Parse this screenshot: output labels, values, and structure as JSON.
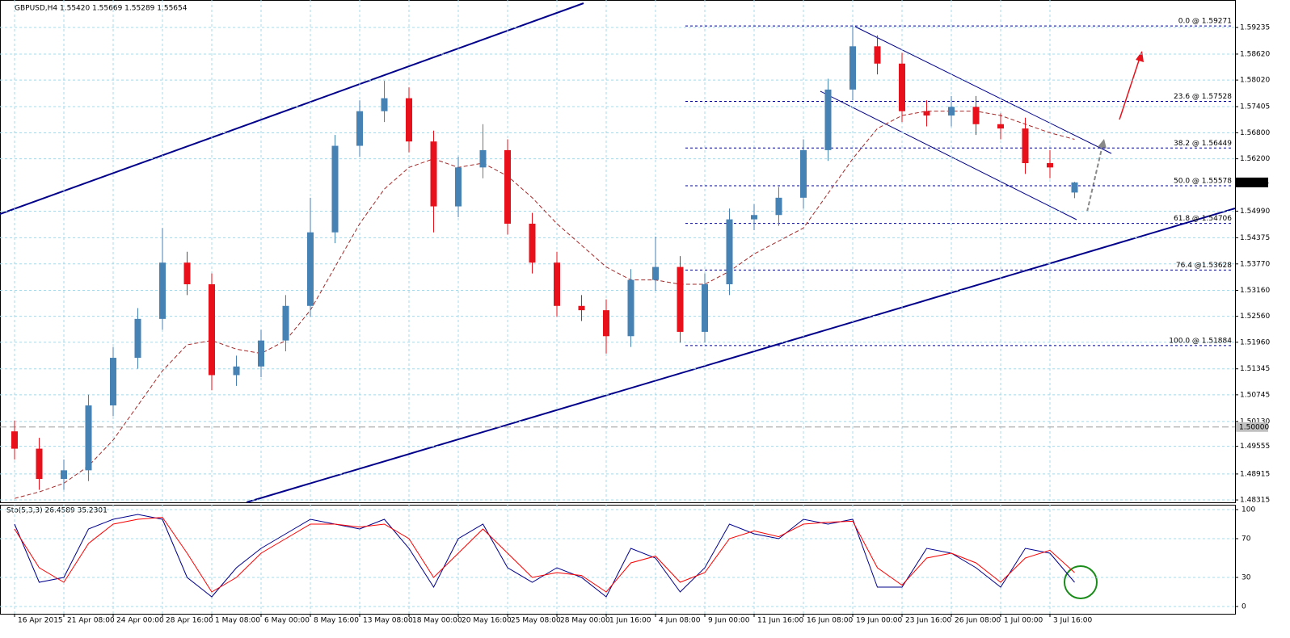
{
  "chart_data": {
    "type": "candlestick",
    "title": "GBPUSD,H4  1.55420 1.55669 1.55289 1.55654",
    "categories": [
      "16 Apr 2015",
      null,
      "21 Apr 08:00",
      null,
      "24 Apr 00:00",
      null,
      "28 Apr 16:00",
      null,
      "1 May 08:00",
      null,
      "6 May 00:00",
      null,
      "8 May 16:00",
      null,
      "13 May 08:00",
      null,
      "18 May 00:00",
      null,
      "20 May 16:00",
      null,
      "25 May 08:00",
      null,
      "28 May 00:00",
      null,
      "1 Jun 16:00",
      null,
      "4 Jun 08:00",
      null,
      "9 Jun 00:00",
      null,
      "11 Jun 16:00",
      null,
      "16 Jun 08:00",
      null,
      "19 Jun 00:00",
      null,
      "23 Jun 16:00",
      null,
      "26 Jun 08:00",
      null,
      "1 Jul 00:00",
      null,
      "3 Jul 16:00",
      null
    ],
    "open": [
      1.499,
      1.495,
      1.488,
      1.49,
      1.505,
      1.516,
      1.525,
      1.538,
      1.533,
      1.512,
      1.514,
      1.52,
      1.528,
      1.545,
      1.565,
      1.573,
      1.576,
      1.566,
      1.551,
      1.56,
      1.564,
      1.547,
      1.538,
      1.528,
      1.527,
      1.521,
      1.534,
      1.537,
      1.522,
      1.533,
      1.548,
      1.549,
      1.553,
      1.564,
      1.578,
      1.588,
      1.584,
      1.573,
      1.572,
      1.574,
      1.57,
      1.569,
      1.561,
      1.5542
    ],
    "high": [
      1.5015,
      1.4975,
      1.4925,
      1.5075,
      1.5185,
      1.5275,
      1.546,
      1.5405,
      1.5355,
      1.5165,
      1.5225,
      1.5305,
      1.553,
      1.5675,
      1.5755,
      1.58,
      1.5785,
      1.5685,
      1.5625,
      1.57,
      1.5665,
      1.5495,
      1.5405,
      1.5305,
      1.5295,
      1.5365,
      1.544,
      1.5395,
      1.5355,
      1.5505,
      1.5515,
      1.5555,
      1.5665,
      1.5805,
      1.5927,
      1.5905,
      1.5865,
      1.5755,
      1.5765,
      1.5765,
      1.5725,
      1.5715,
      1.564,
      1.55669
    ],
    "low": [
      1.4925,
      1.4855,
      1.4855,
      1.4875,
      1.5025,
      1.5135,
      1.5225,
      1.5305,
      1.5085,
      1.5095,
      1.5115,
      1.5175,
      1.5255,
      1.5425,
      1.5625,
      1.5705,
      1.5635,
      1.545,
      1.5485,
      1.5575,
      1.5445,
      1.5355,
      1.5255,
      1.5245,
      1.517,
      1.5185,
      1.5315,
      1.5195,
      1.5195,
      1.5305,
      1.5455,
      1.5465,
      1.5505,
      1.5615,
      1.5755,
      1.5815,
      1.5705,
      1.5695,
      1.5695,
      1.5675,
      1.5665,
      1.5585,
      1.5575,
      1.55289
    ],
    "close": [
      1.495,
      1.488,
      1.49,
      1.505,
      1.516,
      1.525,
      1.538,
      1.533,
      1.512,
      1.514,
      1.52,
      1.528,
      1.545,
      1.565,
      1.573,
      1.576,
      1.566,
      1.551,
      1.56,
      1.564,
      1.547,
      1.538,
      1.528,
      1.527,
      1.521,
      1.534,
      1.537,
      1.522,
      1.533,
      1.548,
      1.549,
      1.553,
      1.564,
      1.578,
      1.588,
      1.584,
      1.573,
      1.572,
      1.574,
      1.57,
      1.569,
      1.561,
      1.56,
      1.55654
    ],
    "up_color": "#4682b4",
    "down_color": "#e8101a",
    "moving_average": {
      "color": "#a52a2a",
      "values": [
        1.4835,
        1.485,
        1.487,
        1.491,
        1.497,
        1.505,
        1.513,
        1.519,
        1.52,
        1.518,
        1.517,
        1.52,
        1.527,
        1.537,
        1.547,
        1.555,
        1.56,
        1.562,
        1.56,
        1.561,
        1.558,
        1.553,
        1.547,
        1.542,
        1.537,
        1.534,
        1.534,
        1.533,
        1.533,
        1.536,
        1.54,
        1.543,
        1.546,
        1.554,
        1.562,
        1.569,
        1.572,
        1.573,
        1.573,
        1.573,
        1.572,
        1.57,
        1.568,
        1.5665
      ]
    },
    "ylim": [
      1.4826,
      1.5987
    ],
    "yticks": [
      {
        "value": 1.48315,
        "label": "1.48315"
      },
      {
        "value": 1.48915,
        "label": "1.48915"
      },
      {
        "value": 1.49555,
        "label": "1.49555"
      },
      {
        "value": 1.5013,
        "label": "1.50130"
      },
      {
        "value": 1.50745,
        "label": "1.50745"
      },
      {
        "value": 1.51345,
        "label": "1.51345"
      },
      {
        "value": 1.5196,
        "label": "1.51960"
      },
      {
        "value": 1.5256,
        "label": "1.52560"
      },
      {
        "value": 1.5316,
        "label": "1.53160"
      },
      {
        "value": 1.5377,
        "label": "1.53770"
      },
      {
        "value": 1.54375,
        "label": "1.54375"
      },
      {
        "value": 1.5499,
        "label": "1.54990"
      },
      {
        "value": 1.562,
        "label": "1.56200"
      },
      {
        "value": 1.568,
        "label": "1.56800"
      },
      {
        "value": 1.57405,
        "label": "1.57405"
      },
      {
        "value": 1.5802,
        "label": "1.58020"
      },
      {
        "value": 1.5862,
        "label": "1.58620"
      },
      {
        "value": 1.59235,
        "label": "1.59235"
      }
    ],
    "grid": true,
    "current_price": 1.55654,
    "reference_line": {
      "value": 1.5,
      "label": "1.50000"
    },
    "fib_levels": [
      {
        "value": 1.59271,
        "label": "0.0 @ 1.59271"
      },
      {
        "value": 1.57528,
        "label": "23.6 @ 1.57528"
      },
      {
        "value": 1.56449,
        "label": "38.2 @ 1.56449"
      },
      {
        "value": 1.55578,
        "label": "50.0 @ 1.55578"
      },
      {
        "value": 1.54706,
        "label": "61.8 @ 1.54706"
      },
      {
        "value": 1.53628,
        "label": "76.4 @1.53628"
      },
      {
        "value": 1.51884,
        "label": "100.0 @ 1.51884"
      }
    ],
    "oscillator": {
      "title": "Sto(5,3,3) 26.4589 35.2301",
      "ylim": [
        -7.5,
        105
      ],
      "yticks": [
        0,
        30,
        70,
        100
      ],
      "series": [
        {
          "color": "#00008b",
          "values": [
            85,
            25,
            30,
            80,
            90,
            95,
            90,
            30,
            10,
            40,
            60,
            75,
            90,
            85,
            80,
            90,
            60,
            20,
            70,
            85,
            40,
            25,
            40,
            30,
            10,
            60,
            50,
            15,
            40,
            85,
            75,
            70,
            90,
            85,
            90,
            20,
            20,
            60,
            55,
            40,
            20,
            60,
            55,
            25
          ]
        },
        {
          "color": "#ff0000",
          "values": [
            80,
            40,
            25,
            65,
            85,
            90,
            92,
            55,
            15,
            30,
            55,
            70,
            85,
            85,
            82,
            85,
            70,
            30,
            55,
            80,
            55,
            30,
            35,
            32,
            15,
            45,
            52,
            25,
            35,
            70,
            78,
            72,
            85,
            87,
            88,
            40,
            22,
            50,
            55,
            45,
            25,
            50,
            58,
            35
          ]
        }
      ]
    }
  }
}
